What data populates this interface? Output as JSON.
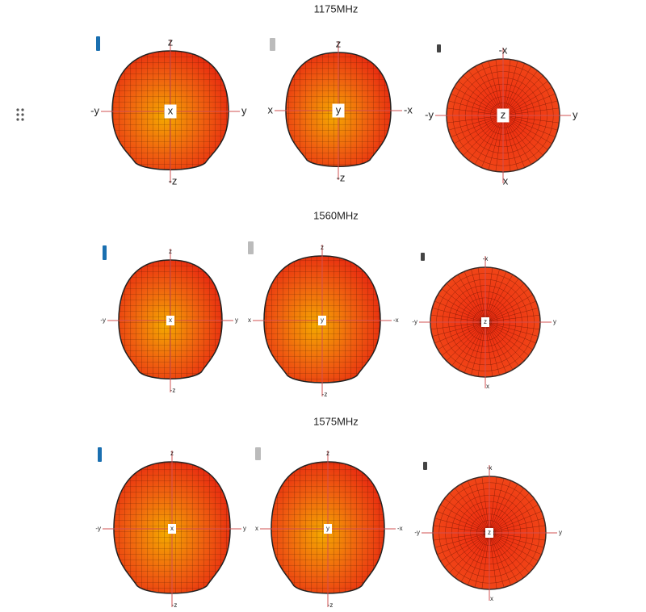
{
  "rows": [
    {
      "title": "1175MHz",
      "views": [
        {
          "top": "z",
          "bottom": "-z",
          "left": "-y",
          "right": "y",
          "center": "x"
        },
        {
          "top": "z",
          "bottom": "-z",
          "left": "x",
          "right": "-x",
          "center": "y"
        },
        {
          "top": "-x",
          "bottom": "x",
          "left": "-y",
          "right": "y",
          "center": "z"
        }
      ]
    },
    {
      "title": "1560MHz",
      "views": [
        {
          "top": "z",
          "bottom": "-z",
          "left": "-y",
          "right": "y",
          "center": "x"
        },
        {
          "top": "z",
          "bottom": "-z",
          "left": "x",
          "right": "-x",
          "center": "y"
        },
        {
          "top": "-x",
          "bottom": "x",
          "left": "-y",
          "right": "y",
          "center": "z"
        }
      ]
    },
    {
      "title": "1575MHz",
      "views": [
        {
          "top": "z",
          "bottom": "-z",
          "left": "-y",
          "right": "y",
          "center": "x"
        },
        {
          "top": "z",
          "bottom": "-z",
          "left": "x",
          "right": "-x",
          "center": "y"
        },
        {
          "top": "-x",
          "bottom": "x",
          "left": "-y",
          "right": "y",
          "center": "z"
        }
      ]
    }
  ]
}
